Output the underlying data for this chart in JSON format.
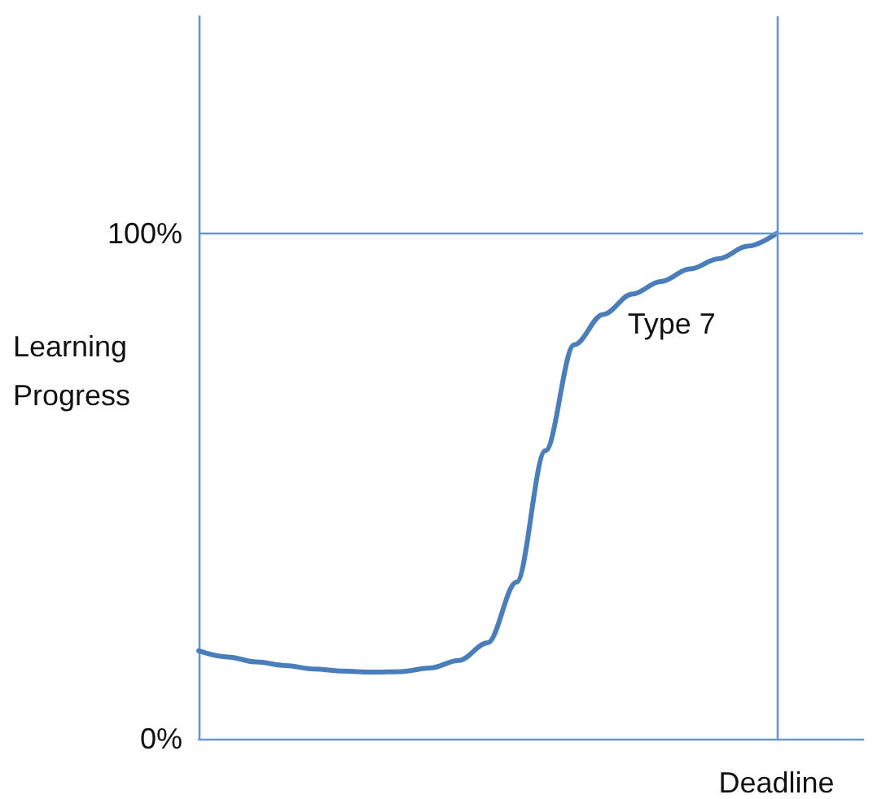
{
  "chart_data": {
    "type": "line",
    "ylabel": "Learning Progress",
    "categories": [
      null,
      null,
      null,
      null,
      null,
      null,
      null,
      null,
      null,
      null,
      null,
      null,
      null,
      null,
      null,
      null,
      null,
      null,
      null,
      null,
      "Deadline",
      null,
      null,
      null
    ],
    "series": [
      {
        "name": "Type 7",
        "color": "#4a7ebb",
        "values": [
          17.4,
          16.2,
          15.2,
          14.5,
          13.8,
          13.4,
          13.2,
          13.3,
          14,
          15.5,
          19,
          31,
          57,
          78,
          84,
          88,
          90.5,
          93,
          95,
          97.5,
          100,
          null,
          null,
          null
        ]
      }
    ],
    "ylim": [
      0,
      143
    ],
    "yticks": [
      {
        "value": 0,
        "label": "0%"
      },
      {
        "value": 100,
        "label": "100%"
      }
    ],
    "ref_lines": [
      {
        "axis": "y",
        "value": 100,
        "color": "#6a96d0"
      },
      {
        "axis": "x",
        "value": "Deadline",
        "color": "#6a96d0"
      }
    ],
    "grid": false,
    "legend": false,
    "marker": "none",
    "line_style": "solid"
  }
}
